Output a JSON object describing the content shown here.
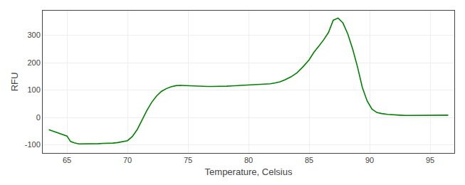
{
  "chart_data": {
    "type": "line",
    "xlabel": "Temperature, Celsius",
    "ylabel": "RFU",
    "x": [
      63.5,
      65.0,
      65.3,
      65.6,
      66.0,
      66.4,
      66.8,
      67.2,
      67.6,
      68.0,
      68.4,
      68.8,
      69.2,
      69.6,
      70.0,
      70.4,
      70.8,
      71.2,
      71.6,
      72.0,
      72.4,
      72.8,
      73.2,
      73.6,
      74.0,
      74.4,
      74.8,
      75.0,
      75.4,
      75.8,
      76.2,
      76.6,
      77.0,
      77.4,
      77.8,
      78.2,
      78.6,
      79.0,
      79.4,
      79.8,
      80.2,
      80.6,
      81.0,
      81.4,
      81.8,
      82.2,
      82.6,
      83.0,
      83.5,
      84.0,
      84.5,
      85.0,
      85.4,
      85.8,
      86.2,
      86.6,
      87.0,
      87.4,
      87.8,
      88.2,
      88.6,
      89.0,
      89.4,
      89.8,
      90.2,
      90.6,
      91.0,
      91.5,
      92.0,
      92.5,
      93.0,
      93.5,
      94.0,
      94.5,
      95.0,
      95.5,
      96.5
    ],
    "values": [
      -45,
      -68,
      -88,
      -93,
      -97,
      -97,
      -97,
      -96,
      -96,
      -95,
      -95,
      -94,
      -92,
      -88,
      -85,
      -70,
      -45,
      -10,
      25,
      55,
      78,
      95,
      105,
      112,
      116,
      117,
      116,
      116,
      115,
      114,
      113,
      113,
      113,
      113,
      113,
      114,
      115,
      116,
      117,
      118,
      118,
      119,
      120,
      121,
      123,
      126,
      130,
      137,
      148,
      163,
      185,
      210,
      238,
      260,
      283,
      310,
      355,
      363,
      345,
      305,
      250,
      185,
      110,
      60,
      30,
      18,
      14,
      11,
      9,
      8,
      7,
      7,
      7,
      7,
      8,
      8,
      8
    ],
    "color": "#008000",
    "xlim": [
      63.0,
      97.0
    ],
    "ylim": [
      -130,
      390
    ],
    "xticks": [
      65,
      70,
      75,
      80,
      85,
      90,
      95
    ],
    "yticks": [
      -100,
      0,
      100,
      200,
      300
    ],
    "grid": true
  }
}
